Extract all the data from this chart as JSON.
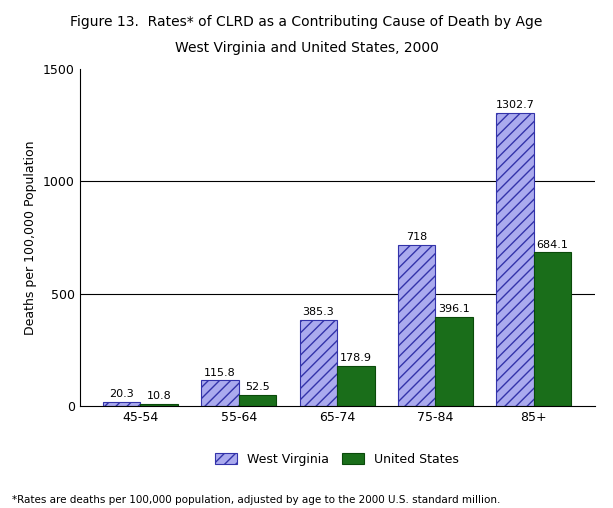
{
  "title_line1": "Figure 13.  Rates* of CLRD as a Contributing Cause of Death by Age",
  "title_line2": "West Virginia and United States, 2000",
  "categories": [
    "45-54",
    "55-64",
    "65-74",
    "75-84",
    "85+"
  ],
  "wv_values": [
    20.3,
    115.8,
    385.3,
    718,
    1302.7
  ],
  "us_values": [
    10.8,
    52.5,
    178.9,
    396.1,
    684.1
  ],
  "wv_facecolor": "#aaaaee",
  "wv_edgecolor": "#3333aa",
  "us_color": "#1a6e1a",
  "us_edgecolor": "#0a4a0a",
  "ylabel": "Deaths per 100,000 Population",
  "ylim": [
    0,
    1500
  ],
  "yticks": [
    0,
    500,
    1000,
    1500
  ],
  "grid_ticks": [
    500,
    1000
  ],
  "footnote": "*Rates are deaths per 100,000 population, adjusted by age to the 2000 U.S. standard million.",
  "legend_wv": "West Virginia",
  "legend_us": "United States",
  "bar_width": 0.38,
  "hatch_pattern": "///",
  "label_fontsize": 8,
  "title_fontsize": 10,
  "axis_fontsize": 9,
  "tick_fontsize": 9
}
